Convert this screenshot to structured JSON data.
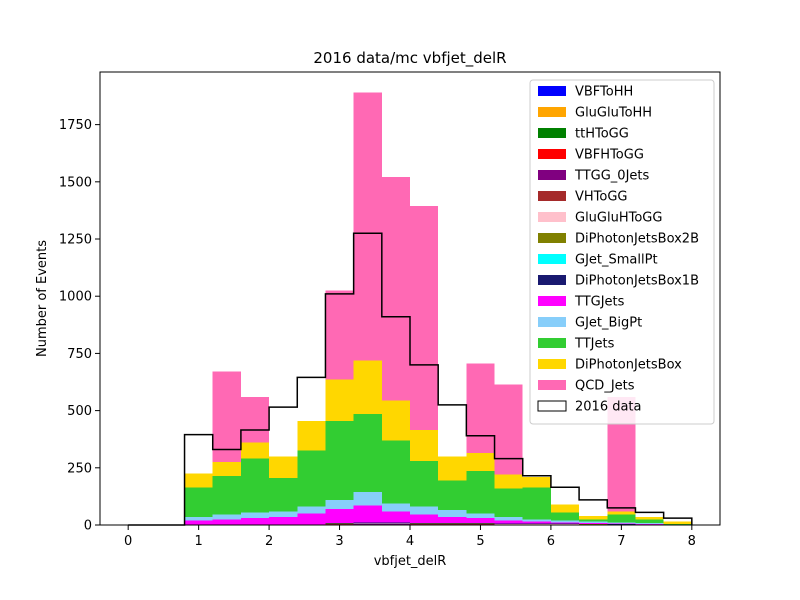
{
  "chart_data": {
    "type": "bar",
    "title": "2016 data/mc vbfjet_delR",
    "xlabel": "vbfjet_delR",
    "ylabel": "Number of Events",
    "xlim": [
      -0.4,
      8.4
    ],
    "ylim": [
      0,
      1980
    ],
    "xticks": [
      0,
      1,
      2,
      3,
      4,
      5,
      6,
      7,
      8
    ],
    "yticks": [
      0,
      250,
      500,
      750,
      1000,
      1250,
      1500,
      1750
    ],
    "bin_edges": [
      0.0,
      0.4,
      0.8,
      1.2,
      1.6,
      2.0,
      2.4,
      2.8,
      3.2,
      3.6,
      4.0,
      4.4,
      4.8,
      5.2,
      5.6,
      6.0,
      6.4,
      6.8,
      7.2,
      7.6,
      8.0
    ],
    "stack_cumulative": true,
    "legend_position": "top-right",
    "series": [
      {
        "name": "VBFToHH",
        "color": "#0000ff",
        "values": [
          0,
          0,
          0,
          0,
          0,
          0,
          0,
          0,
          0,
          0,
          0,
          0,
          0,
          0,
          0,
          0,
          0,
          0,
          0,
          0
        ]
      },
      {
        "name": "GluGluToHH",
        "color": "#ffa500",
        "values": [
          0,
          0,
          0,
          0,
          0,
          0,
          0,
          0,
          0,
          0,
          0,
          0,
          0,
          0,
          0,
          0,
          0,
          0,
          0,
          0
        ]
      },
      {
        "name": "ttHToGG",
        "color": "#008000",
        "values": [
          0,
          0,
          0,
          0,
          0,
          0,
          0,
          0,
          0,
          0,
          0,
          0,
          0,
          0,
          0,
          0,
          0,
          0,
          0,
          0
        ]
      },
      {
        "name": "VBFHToGG",
        "color": "#ff0000",
        "values": [
          0,
          0,
          0,
          0,
          0,
          0,
          0,
          2,
          3,
          3,
          2,
          2,
          2,
          1,
          1,
          1,
          0,
          0,
          0,
          0
        ]
      },
      {
        "name": "TTGG_0Jets",
        "color": "#800080",
        "values": [
          0,
          0,
          0,
          0,
          0,
          0,
          0,
          3,
          4,
          4,
          3,
          3,
          3,
          2,
          2,
          2,
          1,
          1,
          0,
          0
        ]
      },
      {
        "name": "VHToGG",
        "color": "#a52a2a",
        "values": [
          0,
          0,
          0,
          0,
          0,
          0,
          0,
          4,
          5,
          5,
          4,
          4,
          4,
          3,
          3,
          3,
          2,
          1,
          1,
          0
        ]
      },
      {
        "name": "GluGluHToGG",
        "color": "#ffc0cb",
        "values": [
          0,
          0,
          0,
          0,
          0,
          0,
          0,
          5,
          6,
          6,
          5,
          5,
          5,
          4,
          4,
          4,
          3,
          2,
          1,
          0
        ]
      },
      {
        "name": "DiPhotonJetsBox2B",
        "color": "#808000",
        "values": [
          0,
          0,
          0,
          0,
          0,
          0,
          0,
          6,
          7,
          7,
          6,
          6,
          6,
          5,
          5,
          5,
          4,
          3,
          2,
          0
        ]
      },
      {
        "name": "GJet_SmallPt",
        "color": "#00ffff",
        "values": [
          0,
          0,
          0,
          0,
          0,
          0,
          0,
          6,
          7,
          7,
          6,
          6,
          6,
          5,
          5,
          5,
          4,
          3,
          2,
          0
        ]
      },
      {
        "name": "DiPhotonJetsBox1B",
        "color": "#191970",
        "values": [
          0,
          0,
          0,
          0,
          0,
          0,
          0,
          8,
          10,
          10,
          8,
          8,
          8,
          6,
          6,
          6,
          5,
          4,
          3,
          0
        ]
      },
      {
        "name": "TTGJets",
        "color": "#ff00ff",
        "values": [
          0,
          0,
          20,
          25,
          30,
          35,
          50,
          70,
          85,
          60,
          45,
          35,
          30,
          20,
          15,
          10,
          8,
          6,
          4,
          0
        ]
      },
      {
        "name": "GJet_BigPt",
        "color": "#87cefa",
        "values": [
          0,
          0,
          35,
          45,
          55,
          60,
          80,
          110,
          145,
          95,
          80,
          65,
          50,
          35,
          25,
          20,
          15,
          12,
          8,
          0
        ]
      },
      {
        "name": "TTJets",
        "color": "#32cd32",
        "values": [
          0,
          0,
          165,
          215,
          290,
          205,
          325,
          455,
          485,
          370,
          280,
          195,
          235,
          160,
          165,
          55,
          25,
          45,
          25,
          5
        ]
      },
      {
        "name": "DiPhotonJetsBox",
        "color": "#ffd700",
        "values": [
          0,
          0,
          225,
          275,
          360,
          300,
          455,
          635,
          720,
          545,
          415,
          300,
          315,
          220,
          210,
          90,
          40,
          60,
          35,
          15
        ]
      },
      {
        "name": "QCD_Jets",
        "color": "#ff69b4",
        "values": [
          0,
          0,
          225,
          670,
          560,
          300,
          455,
          1025,
          1890,
          1520,
          1395,
          300,
          705,
          615,
          210,
          90,
          40,
          560,
          35,
          15
        ]
      }
    ],
    "data_series": {
      "name": "2016 data",
      "color": "#000000",
      "values": [
        0,
        0,
        395,
        330,
        415,
        515,
        645,
        1010,
        1275,
        910,
        700,
        525,
        390,
        290,
        215,
        165,
        110,
        75,
        55,
        30
      ]
    }
  }
}
